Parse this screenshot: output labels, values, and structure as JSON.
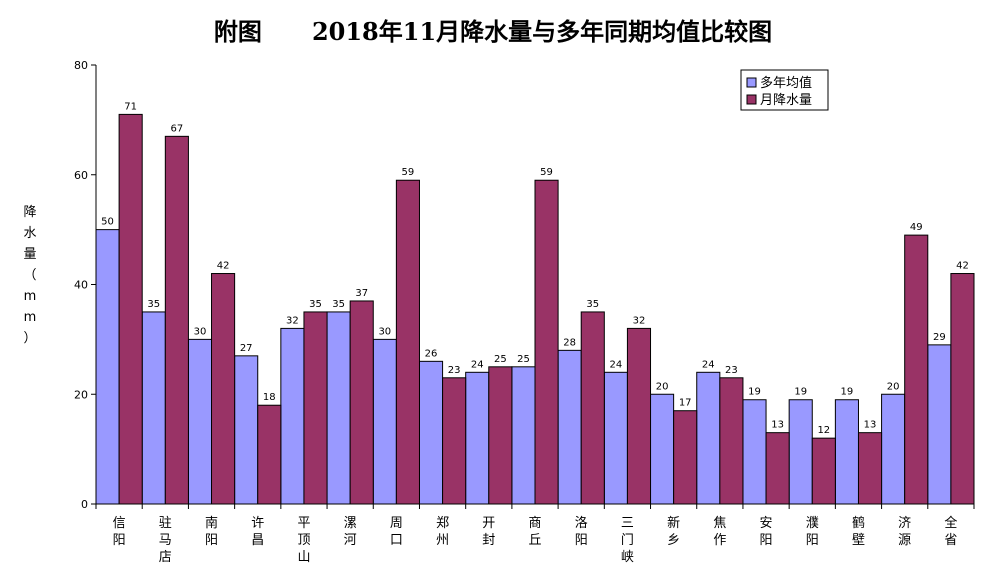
{
  "chart_data": {
    "type": "bar",
    "title": "附图      2018年11月降水量与多年同期均值比较图",
    "ylabel": "降水量（mm）",
    "ylim": [
      0,
      80
    ],
    "yticks": [
      0,
      20,
      40,
      60,
      80
    ],
    "categories": [
      "信阳",
      "驻马店",
      "南阳",
      "许昌",
      "平顶山",
      "漯河",
      "周口",
      "郑州",
      "开封",
      "商丘",
      "洛阳",
      "三门峡",
      "新乡",
      "焦作",
      "安阳",
      "濮阳",
      "鹤壁",
      "济源",
      "全省"
    ],
    "series": [
      {
        "name": "多年均值",
        "color": "#9999ff",
        "values": [
          50,
          35,
          30,
          27,
          32,
          35,
          30,
          26,
          24,
          25,
          28,
          24,
          20,
          24,
          19,
          19,
          19,
          20,
          29
        ]
      },
      {
        "name": "月降水量",
        "color": "#993366",
        "values": [
          71,
          67,
          42,
          18,
          35,
          37,
          59,
          23,
          25,
          59,
          35,
          32,
          17,
          23,
          13,
          12,
          13,
          49,
          42
        ]
      }
    ],
    "grid": false,
    "legend": "top-right"
  }
}
